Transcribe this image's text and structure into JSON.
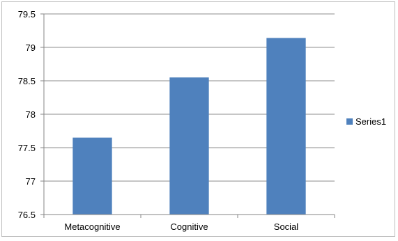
{
  "chart_data": {
    "type": "bar",
    "categories": [
      "Metacognitive",
      "Cognitive",
      "Social"
    ],
    "series": [
      {
        "name": "Series1",
        "values": [
          77.65,
          78.55,
          79.14
        ]
      }
    ],
    "ylim": [
      76.5,
      79.5
    ],
    "yticks": [
      "76.5",
      "77",
      "77.5",
      "78",
      "78.5",
      "79",
      "79.5"
    ],
    "grid": true,
    "legend": "right",
    "bar_color": "#4f81bd",
    "grid_color": "#8c8c8c",
    "axis_color": "#868686"
  }
}
